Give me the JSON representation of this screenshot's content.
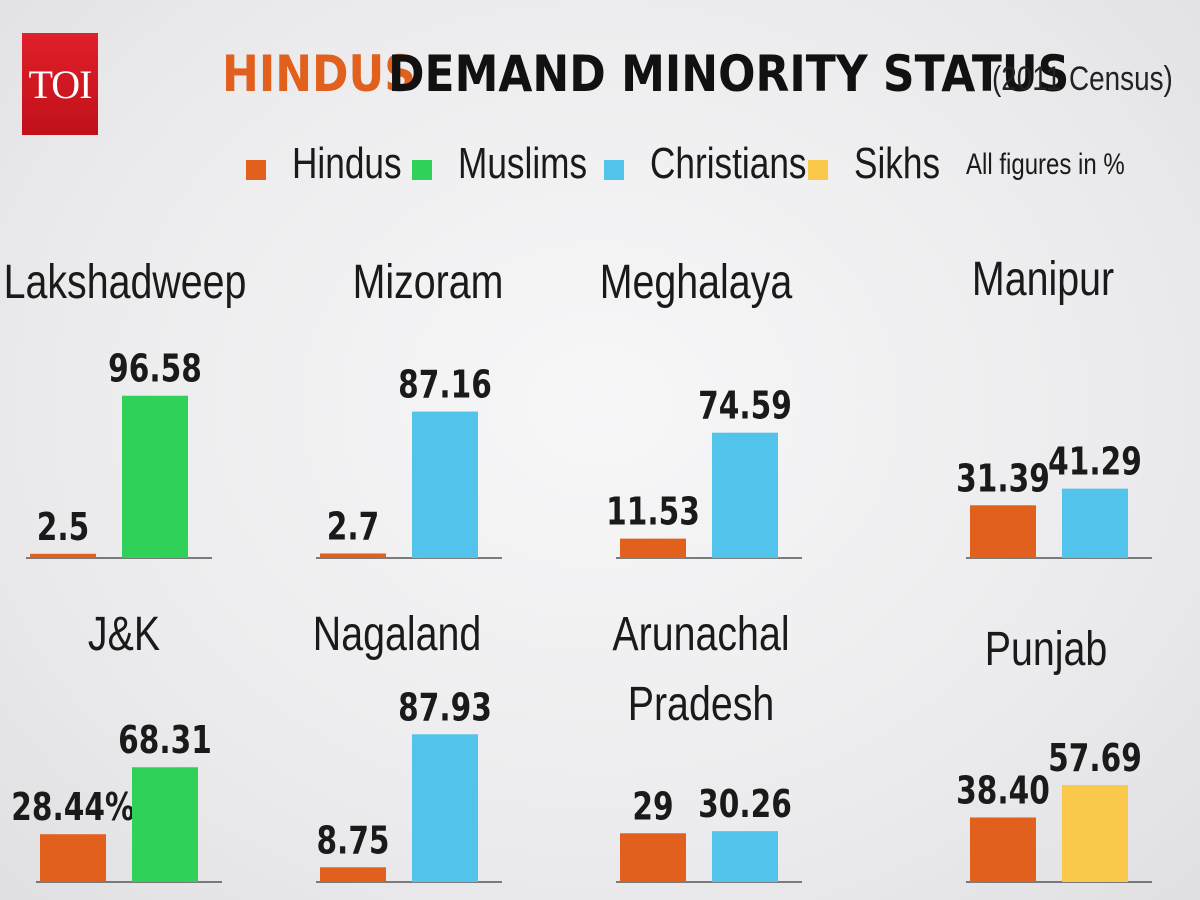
{
  "logo": {
    "text": "TOI"
  },
  "title": {
    "part1": "HINDUS",
    "part2": "DEMAND MINORITY STATUS",
    "subtitle": "(2011 Census)"
  },
  "legend": [
    {
      "label": "Hindus",
      "color": "#e2601d"
    },
    {
      "label": "Muslims",
      "color": "#2fd159"
    },
    {
      "label": "Christians",
      "color": "#52c3ea"
    },
    {
      "label": "Sikhs",
      "color": "#fac84a"
    }
  ],
  "note": "All figures in %",
  "colors": {
    "Hindus": "#e2601d",
    "Muslims": "#2fd159",
    "Christians": "#52c3ea",
    "Sikhs": "#fac84a"
  },
  "chart_data": [
    {
      "type": "bar",
      "title": "Lakshadweep",
      "categories": [
        "Hindus",
        "Muslims"
      ],
      "values": [
        2.5,
        96.58
      ],
      "labels": [
        "2.5",
        "96.58"
      ]
    },
    {
      "type": "bar",
      "title": "Mizoram",
      "categories": [
        "Hindus",
        "Christians"
      ],
      "values": [
        2.7,
        87.16
      ],
      "labels": [
        "2.7",
        "87.16"
      ]
    },
    {
      "type": "bar",
      "title": "Meghalaya",
      "categories": [
        "Hindus",
        "Christians"
      ],
      "values": [
        11.53,
        74.59
      ],
      "labels": [
        "11.53",
        "74.59"
      ]
    },
    {
      "type": "bar",
      "title": "Manipur",
      "categories": [
        "Hindus",
        "Christians"
      ],
      "values": [
        31.39,
        41.29
      ],
      "labels": [
        "31.39",
        "41.29"
      ]
    },
    {
      "type": "bar",
      "title": "J&K",
      "categories": [
        "Hindus",
        "Muslims"
      ],
      "values": [
        28.44,
        68.31
      ],
      "labels": [
        "28.44%",
        "68.31"
      ]
    },
    {
      "type": "bar",
      "title": "Nagaland",
      "categories": [
        "Hindus",
        "Christians"
      ],
      "values": [
        8.75,
        87.93
      ],
      "labels": [
        "8.75",
        "87.93"
      ]
    },
    {
      "type": "bar",
      "title": "Arunachal Pradesh",
      "categories": [
        "Hindus",
        "Christians"
      ],
      "values": [
        29,
        30.26
      ],
      "labels": [
        "29",
        "30.26"
      ]
    },
    {
      "type": "bar",
      "title": "Punjab",
      "categories": [
        "Hindus",
        "Sikhs"
      ],
      "values": [
        38.4,
        57.69
      ],
      "labels": [
        "38.40",
        "57.69"
      ]
    }
  ]
}
